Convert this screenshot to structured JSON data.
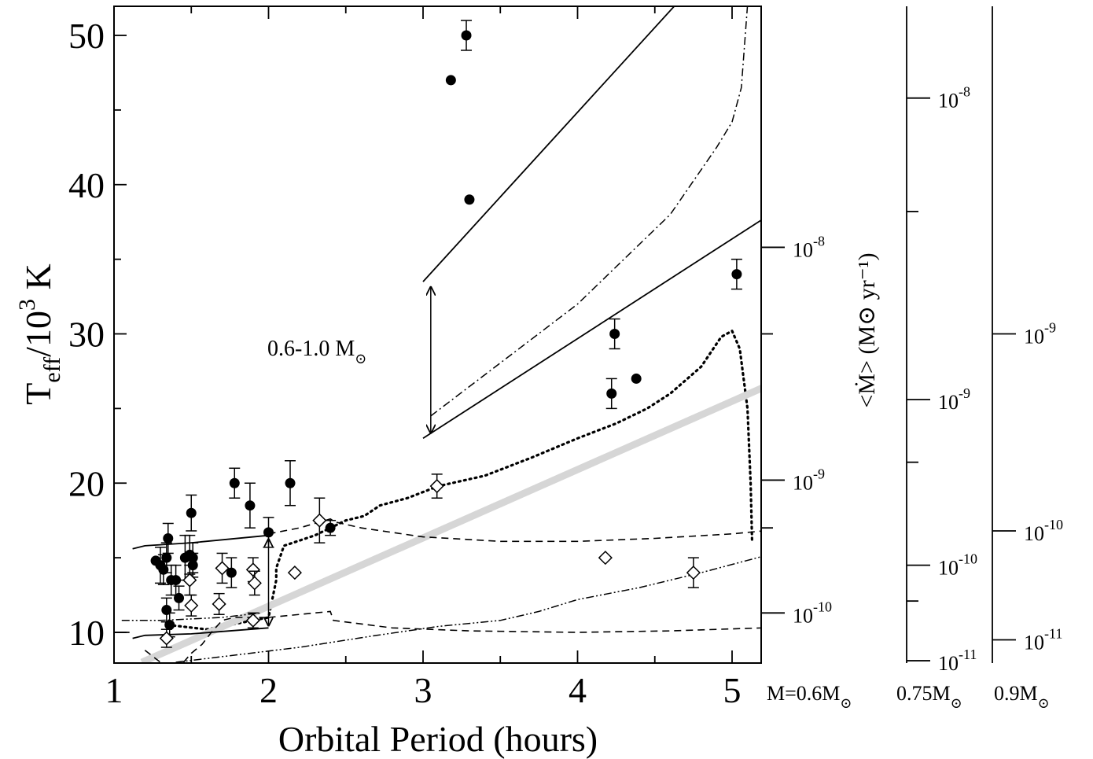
{
  "chart_data": {
    "type": "scatter",
    "xlabel": "Orbital Period (hours)",
    "ylabel": "T_eff/10^3 K",
    "ylabel_parts": {
      "main": "T",
      "sub": "eff",
      "mid": "/10",
      "sup": "3",
      "end": " K"
    },
    "xlim": [
      1,
      5.2
    ],
    "ylim": [
      8,
      52
    ],
    "x_ticks": [
      "1",
      "2",
      "3",
      "4",
      "5"
    ],
    "y_ticks": [
      "10",
      "20",
      "30",
      "40",
      "50"
    ],
    "annotation": {
      "text": "0.6-1.0 M",
      "sun": "⊙"
    },
    "mdot_label": {
      "text": "<Ṁ> (M⊙ yr⁻¹)"
    },
    "mass_labels": [
      {
        "base": "M=0.6M",
        "sun": "⊙"
      },
      {
        "base": "0.75M",
        "sun": "⊙"
      },
      {
        "base": "0.9M",
        "sun": "⊙"
      }
    ],
    "mdot_axes": [
      {
        "mass": "0.6",
        "labels": [
          {
            "base": "10",
            "exp": "-8",
            "teff": 35.8
          },
          {
            "base": "10",
            "exp": "-9",
            "teff": 20.2
          },
          {
            "base": "10",
            "exp": "-10",
            "teff": 11.3
          }
        ],
        "major": [
          35.8,
          20.2,
          11.3
        ],
        "minor": [
          30.0,
          17.0
        ]
      },
      {
        "mass": "0.75",
        "labels": [
          {
            "base": "10",
            "exp": "-8",
            "teff": 45.8
          },
          {
            "base": "10",
            "exp": "-9",
            "teff": 25.6
          },
          {
            "base": "10",
            "exp": "-10",
            "teff": 14.5
          },
          {
            "base": "10",
            "exp": "-11",
            "teff": 8.1
          }
        ],
        "major": [
          45.8,
          25.6,
          14.5,
          8.1
        ],
        "minor": [
          38.2,
          21.4,
          12.1
        ]
      },
      {
        "mass": "0.9",
        "labels": [
          {
            "base": "10",
            "exp": "-9",
            "teff": 30.0
          },
          {
            "base": "10",
            "exp": "-10",
            "teff": 16.8
          },
          {
            "base": "10",
            "exp": "-11",
            "teff": 9.5
          }
        ],
        "major": [
          30.0,
          16.8,
          9.5
        ],
        "minor": []
      }
    ],
    "series": [
      {
        "marker": "filled-circle",
        "points": [
          {
            "x": 1.27,
            "y": 14.8,
            "err": 0.0
          },
          {
            "x": 1.3,
            "y": 14.5,
            "err": 1.2
          },
          {
            "x": 1.32,
            "y": 14.2,
            "err": 1.0
          },
          {
            "x": 1.34,
            "y": 15.0,
            "err": 1.0
          },
          {
            "x": 1.35,
            "y": 16.3,
            "err": 1.0
          },
          {
            "x": 1.34,
            "y": 11.5,
            "err": 0.8
          },
          {
            "x": 1.36,
            "y": 10.5,
            "err": 0.8
          },
          {
            "x": 1.37,
            "y": 13.5,
            "err": 1.0
          },
          {
            "x": 1.4,
            "y": 13.5,
            "err": 1.0
          },
          {
            "x": 1.42,
            "y": 12.3,
            "err": 0.8
          },
          {
            "x": 1.46,
            "y": 15.0,
            "err": 1.5
          },
          {
            "x": 1.49,
            "y": 15.2,
            "err": 1.3
          },
          {
            "x": 1.5,
            "y": 18.0,
            "err": 1.2
          },
          {
            "x": 1.51,
            "y": 15.0,
            "err": 1.0
          },
          {
            "x": 1.51,
            "y": 14.5,
            "err": 0.8
          },
          {
            "x": 1.76,
            "y": 14.0,
            "err": 1.0
          },
          {
            "x": 1.78,
            "y": 20.0,
            "err": 1.0
          },
          {
            "x": 1.88,
            "y": 18.5,
            "err": 1.5
          },
          {
            "x": 2.14,
            "y": 20.0,
            "err": 1.5
          },
          {
            "x": 2.0,
            "y": 16.7,
            "err": 1.0
          },
          {
            "x": 2.4,
            "y": 17.0,
            "err": 0.5
          },
          {
            "x": 3.18,
            "y": 47.0,
            "err": 0.0
          },
          {
            "x": 3.28,
            "y": 50.0,
            "err": 1.0
          },
          {
            "x": 3.3,
            "y": 39.0,
            "err": 0.0
          },
          {
            "x": 4.22,
            "y": 26.0,
            "err": 1.0
          },
          {
            "x": 4.24,
            "y": 30.0,
            "err": 1.0
          },
          {
            "x": 4.38,
            "y": 27.0,
            "err": 0.0
          },
          {
            "x": 5.03,
            "y": 34.0,
            "err": 1.0
          }
        ]
      },
      {
        "marker": "open-diamond",
        "points": [
          {
            "x": 1.34,
            "y": 9.6,
            "err": 0.6
          },
          {
            "x": 1.49,
            "y": 13.5,
            "err": 1.0
          },
          {
            "x": 1.5,
            "y": 11.8,
            "err": 0.7
          },
          {
            "x": 1.68,
            "y": 11.9,
            "err": 0.7
          },
          {
            "x": 1.7,
            "y": 14.3,
            "err": 1.0
          },
          {
            "x": 1.9,
            "y": 14.2,
            "err": 0.8
          },
          {
            "x": 1.91,
            "y": 13.3,
            "err": 0.8
          },
          {
            "x": 1.9,
            "y": 10.8,
            "err": 0.5
          },
          {
            "x": 2.17,
            "y": 14.0,
            "err": 0.0
          },
          {
            "x": 2.33,
            "y": 17.5,
            "err": 1.5
          },
          {
            "x": 3.09,
            "y": 19.8,
            "err": 0.8
          },
          {
            "x": 4.18,
            "y": 15.0,
            "err": 0.0
          },
          {
            "x": 4.75,
            "y": 14.0,
            "err": 1.0
          }
        ]
      }
    ],
    "lines": [
      {
        "style": "solid",
        "points": [
          [
            3.0,
            33.5
          ],
          [
            4.63,
            52.0
          ]
        ]
      },
      {
        "style": "solid",
        "points": [
          [
            3.0,
            23.0
          ],
          [
            5.2,
            37.7
          ]
        ]
      },
      {
        "style": "dashdot",
        "points": [
          [
            3.05,
            24.5
          ],
          [
            4.0,
            32.0
          ],
          [
            4.6,
            38.0
          ],
          [
            4.9,
            42.5
          ],
          [
            5.0,
            44.2
          ],
          [
            5.06,
            46.5
          ],
          [
            5.1,
            52.0
          ]
        ]
      },
      {
        "style": "dotted",
        "points": [
          [
            2.4,
            17.0
          ],
          [
            2.5,
            17.5
          ],
          [
            2.62,
            17.8
          ],
          [
            2.72,
            18.5
          ],
          [
            2.9,
            19.0
          ],
          [
            3.1,
            19.8
          ],
          [
            3.4,
            20.5
          ],
          [
            3.7,
            21.7
          ],
          [
            4.0,
            23.0
          ],
          [
            4.25,
            24.0
          ],
          [
            4.45,
            25.0
          ],
          [
            4.6,
            26.0
          ],
          [
            4.8,
            27.8
          ],
          [
            4.93,
            29.8
          ],
          [
            5.0,
            30.2
          ],
          [
            5.05,
            29.0
          ],
          [
            5.1,
            25.0
          ],
          [
            5.12,
            20.0
          ],
          [
            5.13,
            16.0
          ]
        ]
      },
      {
        "style": "dotted",
        "points": [
          [
            1.35,
            10.5
          ],
          [
            1.6,
            10.2
          ],
          [
            2.0,
            11.0
          ],
          [
            2.05,
            13.5
          ],
          [
            2.05,
            14.3
          ],
          [
            2.1,
            15.8
          ],
          [
            2.3,
            16.5
          ],
          [
            2.4,
            17.0
          ]
        ]
      },
      {
        "style": "gray",
        "points": [
          [
            1.18,
            8.0
          ],
          [
            5.2,
            26.4
          ]
        ]
      },
      {
        "style": "solid",
        "points": [
          [
            1.12,
            15.6
          ],
          [
            1.2,
            15.8
          ],
          [
            1.5,
            16.0
          ],
          [
            2.0,
            16.5
          ]
        ]
      },
      {
        "style": "solid",
        "points": [
          [
            1.12,
            9.6
          ],
          [
            1.2,
            9.8
          ],
          [
            1.5,
            9.9
          ],
          [
            2.0,
            10.3
          ]
        ]
      },
      {
        "style": "solid",
        "points": [
          [
            1.0,
            10.0
          ],
          [
            1.1,
            10.0
          ]
        ]
      },
      {
        "style": "dashed",
        "points": [
          [
            2.0,
            16.6
          ],
          [
            2.2,
            17.0
          ],
          [
            2.4,
            17.6
          ],
          [
            2.43,
            17.4
          ],
          [
            2.6,
            17.0
          ],
          [
            3.0,
            16.4
          ],
          [
            3.5,
            16.1
          ],
          [
            4.0,
            16.1
          ],
          [
            4.5,
            16.3
          ],
          [
            5.0,
            16.6
          ],
          [
            5.2,
            16.8
          ]
        ]
      },
      {
        "style": "dashed",
        "points": [
          [
            2.0,
            11.0
          ],
          [
            2.2,
            11.2
          ],
          [
            2.4,
            11.4
          ],
          [
            2.42,
            10.8
          ],
          [
            2.8,
            10.3
          ],
          [
            3.3,
            10.1
          ],
          [
            4.0,
            10.0
          ],
          [
            4.6,
            10.1
          ],
          [
            5.2,
            10.3
          ]
        ]
      },
      {
        "style": "dashed",
        "points": [
          [
            1.45,
            8.0
          ],
          [
            1.5,
            8.6
          ],
          [
            1.57,
            9.2
          ],
          [
            1.63,
            10.0
          ],
          [
            1.7,
            10.8
          ],
          [
            1.78,
            11.0
          ],
          [
            2.0,
            11.0
          ]
        ]
      },
      {
        "style": "dashed",
        "points": [
          [
            1.2,
            8.8
          ],
          [
            1.3,
            8.0
          ]
        ]
      },
      {
        "style": "dashdotdot",
        "points": [
          [
            1.05,
            10.8
          ],
          [
            1.3,
            10.8
          ],
          [
            1.7,
            11.0
          ],
          [
            1.95,
            11.3
          ]
        ]
      },
      {
        "style": "dashdotdot",
        "points": [
          [
            1.4,
            8.0
          ],
          [
            1.8,
            8.5
          ],
          [
            2.2,
            9.0
          ],
          [
            2.7,
            9.8
          ],
          [
            3.1,
            10.4
          ],
          [
            3.5,
            10.8
          ],
          [
            3.75,
            11.4
          ],
          [
            4.0,
            12.2
          ],
          [
            4.4,
            13.0
          ],
          [
            4.8,
            14.0
          ],
          [
            5.2,
            15.1
          ]
        ]
      }
    ],
    "arrows": [
      {
        "x": 3.05,
        "y_from": 23.3,
        "y_to": 33.2
      },
      {
        "x": 2.0,
        "y_from": 10.4,
        "y_to": 16.3
      }
    ]
  }
}
